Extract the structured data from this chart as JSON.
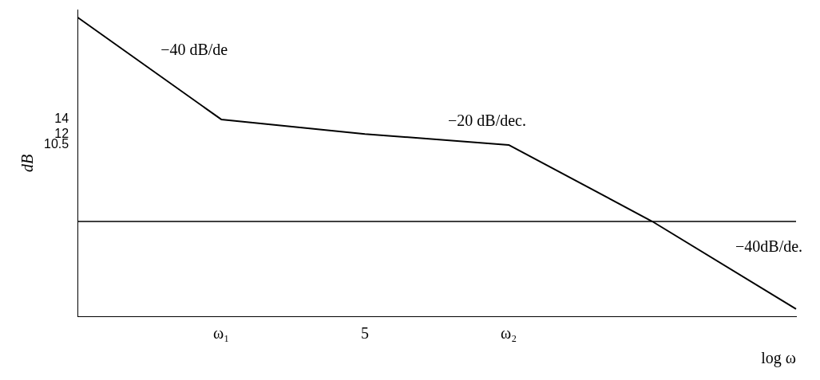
{
  "chart_data": {
    "type": "line",
    "xlabel": "log ω",
    "ylabel": "dB",
    "categories": [
      null,
      "ω₁",
      "5",
      "ω₂",
      null,
      null
    ],
    "values": [
      28,
      14,
      12,
      10.5,
      0,
      -12
    ],
    "color": "#000000",
    "marker": "none",
    "line_style": "solid",
    "grid": false,
    "legend": false,
    "ylim": [
      -13,
      29
    ],
    "yticks": [
      10.5,
      12,
      14
    ],
    "annotations": [
      "−40 dB/de",
      "−20 dB/dec.",
      "−40dB/de."
    ]
  }
}
